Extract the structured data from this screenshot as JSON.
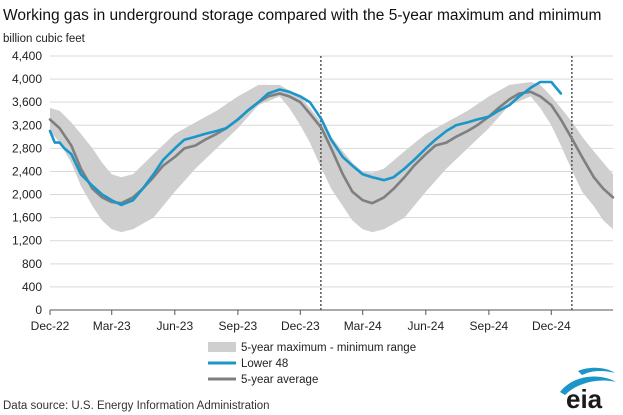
{
  "chart_data": {
    "type": "line",
    "title": "Working gas in underground  storage compared with the 5-year maximum and minimum",
    "unit_label": "billion cubic feet",
    "ylim": [
      0,
      4400
    ],
    "y_ticks": [
      "4,400",
      "4,000",
      "3,600",
      "3,200",
      "2,800",
      "2,400",
      "2,000",
      "1,600",
      "1,200",
      "800",
      "400",
      "0"
    ],
    "y_tick_values": [
      4400,
      4000,
      3600,
      3200,
      2800,
      2400,
      2000,
      1600,
      1200,
      800,
      400,
      0
    ],
    "xlim": [
      "2022-12-01",
      "2025-03-01"
    ],
    "x_ticks": [
      {
        "label": "Dec-22",
        "date": "2022-12-01"
      },
      {
        "label": "Mar-23",
        "date": "2023-03-01"
      },
      {
        "label": "Jun-23",
        "date": "2023-06-01"
      },
      {
        "label": "Sep-23",
        "date": "2023-09-01"
      },
      {
        "label": "Dec-23",
        "date": "2023-12-01"
      },
      {
        "label": "Mar-24",
        "date": "2024-03-01"
      },
      {
        "label": "Jun-24",
        "date": "2024-06-01"
      },
      {
        "label": "Sep-24",
        "date": "2024-09-01"
      },
      {
        "label": "Dec-24",
        "date": "2024-12-01"
      }
    ],
    "grid": true,
    "vertical_markers": [
      "2023-12-31",
      "2024-12-31"
    ],
    "series": [
      {
        "name": "5-year maximum - minimum range",
        "kind": "band",
        "color": "#cfcfcf",
        "x": [
          "2022-12-01",
          "2022-12-15",
          "2023-01-01",
          "2023-01-15",
          "2023-02-01",
          "2023-02-15",
          "2023-03-01",
          "2023-03-15",
          "2023-04-01",
          "2023-05-01",
          "2023-06-01",
          "2023-07-01",
          "2023-08-01",
          "2023-09-01",
          "2023-10-01",
          "2023-11-01",
          "2023-11-15",
          "2023-12-01",
          "2023-12-15",
          "2024-01-01",
          "2024-01-15",
          "2024-02-01",
          "2024-02-15",
          "2024-03-01",
          "2024-03-15",
          "2024-04-01",
          "2024-05-01",
          "2024-06-01",
          "2024-07-01",
          "2024-08-01",
          "2024-09-01",
          "2024-10-01",
          "2024-11-01",
          "2024-11-15",
          "2024-12-01",
          "2024-12-15",
          "2025-01-01",
          "2025-01-15",
          "2025-02-01",
          "2025-02-15",
          "2025-03-01"
        ],
        "high": [
          3500,
          3450,
          3250,
          3050,
          2800,
          2550,
          2350,
          2300,
          2350,
          2700,
          3050,
          3250,
          3450,
          3700,
          3900,
          3900,
          3800,
          3700,
          3500,
          3250,
          3000,
          2750,
          2550,
          2400,
          2380,
          2450,
          2750,
          3050,
          3250,
          3450,
          3700,
          3900,
          3950,
          3900,
          3700,
          3500,
          3250,
          3000,
          2750,
          2550,
          2350
        ],
        "low": [
          3100,
          2900,
          2550,
          2150,
          1800,
          1550,
          1400,
          1350,
          1400,
          1600,
          2050,
          2450,
          2800,
          3150,
          3550,
          3700,
          3500,
          3200,
          2900,
          2450,
          2100,
          1800,
          1550,
          1400,
          1350,
          1400,
          1600,
          2050,
          2450,
          2800,
          3150,
          3550,
          3700,
          3500,
          3200,
          2850,
          2400,
          2050,
          1800,
          1550,
          1400
        ]
      },
      {
        "name": "Lower 48",
        "color": "#1b96c8",
        "x": [
          "2022-12-01",
          "2022-12-08",
          "2022-12-15",
          "2022-12-22",
          "2023-01-01",
          "2023-01-15",
          "2023-02-01",
          "2023-02-15",
          "2023-03-01",
          "2023-03-15",
          "2023-04-01",
          "2023-04-15",
          "2023-05-01",
          "2023-05-15",
          "2023-06-01",
          "2023-06-15",
          "2023-07-01",
          "2023-07-15",
          "2023-08-01",
          "2023-08-15",
          "2023-09-01",
          "2023-09-15",
          "2023-10-01",
          "2023-10-15",
          "2023-11-01",
          "2023-11-15",
          "2023-12-01",
          "2023-12-15",
          "2024-01-01",
          "2024-01-15",
          "2024-02-01",
          "2024-02-15",
          "2024-03-01",
          "2024-03-15",
          "2024-04-01",
          "2024-04-15",
          "2024-05-01",
          "2024-05-15",
          "2024-06-01",
          "2024-06-15",
          "2024-07-01",
          "2024-07-15",
          "2024-08-01",
          "2024-08-15",
          "2024-09-01",
          "2024-09-15",
          "2024-10-01",
          "2024-10-15",
          "2024-11-01",
          "2024-11-15",
          "2024-12-01",
          "2024-12-15"
        ],
        "values": [
          3100,
          2900,
          2900,
          2800,
          2700,
          2350,
          2150,
          2000,
          1900,
          1820,
          1900,
          2100,
          2350,
          2600,
          2800,
          2950,
          3000,
          3050,
          3100,
          3150,
          3300,
          3450,
          3600,
          3750,
          3820,
          3780,
          3700,
          3600,
          3300,
          2950,
          2650,
          2500,
          2350,
          2300,
          2250,
          2300,
          2450,
          2600,
          2800,
          2950,
          3100,
          3200,
          3250,
          3300,
          3350,
          3450,
          3550,
          3700,
          3850,
          3950,
          3950,
          3750
        ]
      },
      {
        "name": "5-year average",
        "color": "#7f7f7f",
        "x": [
          "2022-12-01",
          "2022-12-15",
          "2023-01-01",
          "2023-01-15",
          "2023-02-01",
          "2023-02-15",
          "2023-03-01",
          "2023-03-15",
          "2023-04-01",
          "2023-04-15",
          "2023-05-01",
          "2023-05-15",
          "2023-06-01",
          "2023-06-15",
          "2023-07-01",
          "2023-07-15",
          "2023-08-01",
          "2023-08-15",
          "2023-09-01",
          "2023-09-15",
          "2023-10-01",
          "2023-10-15",
          "2023-11-01",
          "2023-11-15",
          "2023-12-01",
          "2023-12-15",
          "2024-01-01",
          "2024-01-15",
          "2024-02-01",
          "2024-02-15",
          "2024-03-01",
          "2024-03-15",
          "2024-04-01",
          "2024-04-15",
          "2024-05-01",
          "2024-05-15",
          "2024-06-01",
          "2024-06-15",
          "2024-07-01",
          "2024-07-15",
          "2024-08-01",
          "2024-08-15",
          "2024-09-01",
          "2024-09-15",
          "2024-10-01",
          "2024-10-15",
          "2024-11-01",
          "2024-11-15",
          "2024-12-01",
          "2024-12-15",
          "2025-01-01",
          "2025-01-15",
          "2025-02-01",
          "2025-02-15",
          "2025-03-01"
        ],
        "values": [
          3300,
          3150,
          2850,
          2450,
          2100,
          1950,
          1870,
          1850,
          1950,
          2100,
          2300,
          2500,
          2650,
          2800,
          2850,
          2950,
          3050,
          3150,
          3300,
          3450,
          3600,
          3700,
          3750,
          3700,
          3600,
          3400,
          3150,
          2800,
          2350,
          2050,
          1900,
          1850,
          1950,
          2100,
          2300,
          2500,
          2700,
          2850,
          2900,
          3000,
          3100,
          3200,
          3350,
          3500,
          3650,
          3750,
          3780,
          3700,
          3550,
          3300,
          2950,
          2650,
          2300,
          2100,
          1950
        ]
      }
    ],
    "legend": {
      "position": "bottom",
      "entries": [
        {
          "label": "5-year maximum - minimum range",
          "color": "#cfcfcf"
        },
        {
          "label": "Lower 48",
          "color": "#1b96c8"
        },
        {
          "label": "5-year average",
          "color": "#7f7f7f"
        }
      ]
    }
  },
  "source": "Data source:  U.S. Energy Information Administration",
  "logo_text": "eia"
}
